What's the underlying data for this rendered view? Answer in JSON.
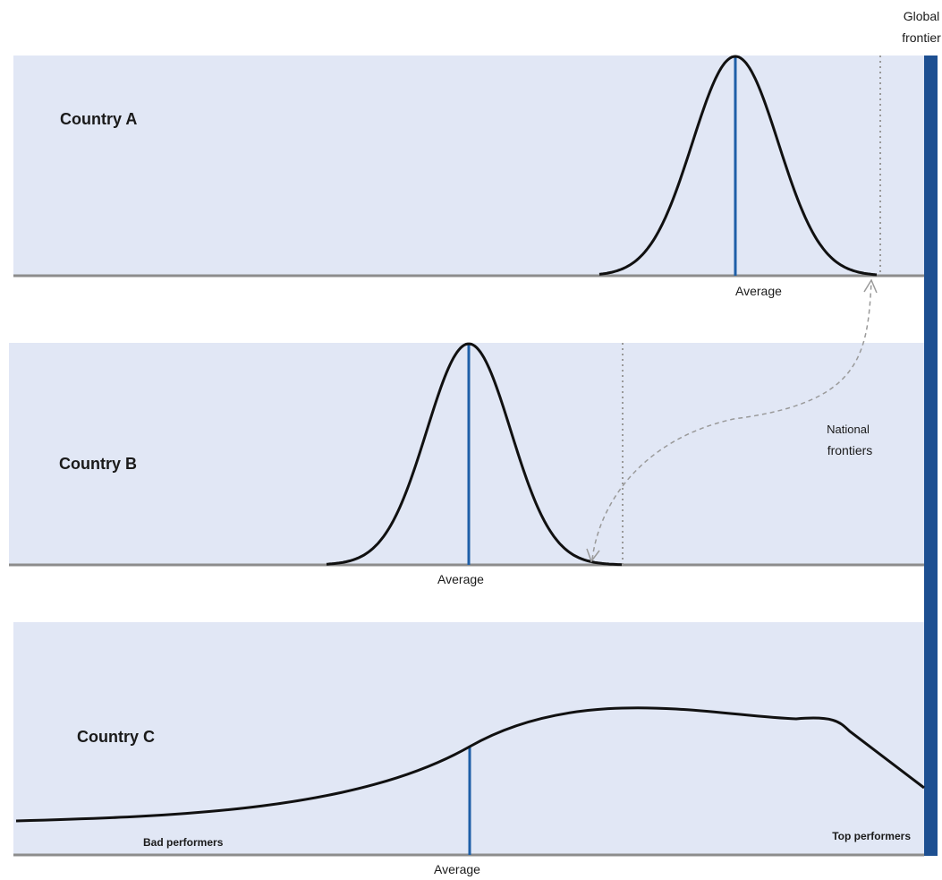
{
  "global_frontier": {
    "line1": "Global",
    "line2": "frontier"
  },
  "national_frontiers": {
    "line1": "National",
    "line2": "frontiers"
  },
  "panels": [
    {
      "label": "Country A",
      "average_label": "Average"
    },
    {
      "label": "Country B",
      "average_label": "Average"
    },
    {
      "label": "Country C",
      "average_label": "Average",
      "left_label": "Bad performers",
      "right_label": "Top performers"
    }
  ],
  "colors": {
    "panel_bg": "#e1e7f5",
    "axis": "#8c8c8c",
    "average_line": "#1e5fa8",
    "frontier_bar": "#1d4f91",
    "curve": "#111111",
    "dotted": "#999999"
  }
}
